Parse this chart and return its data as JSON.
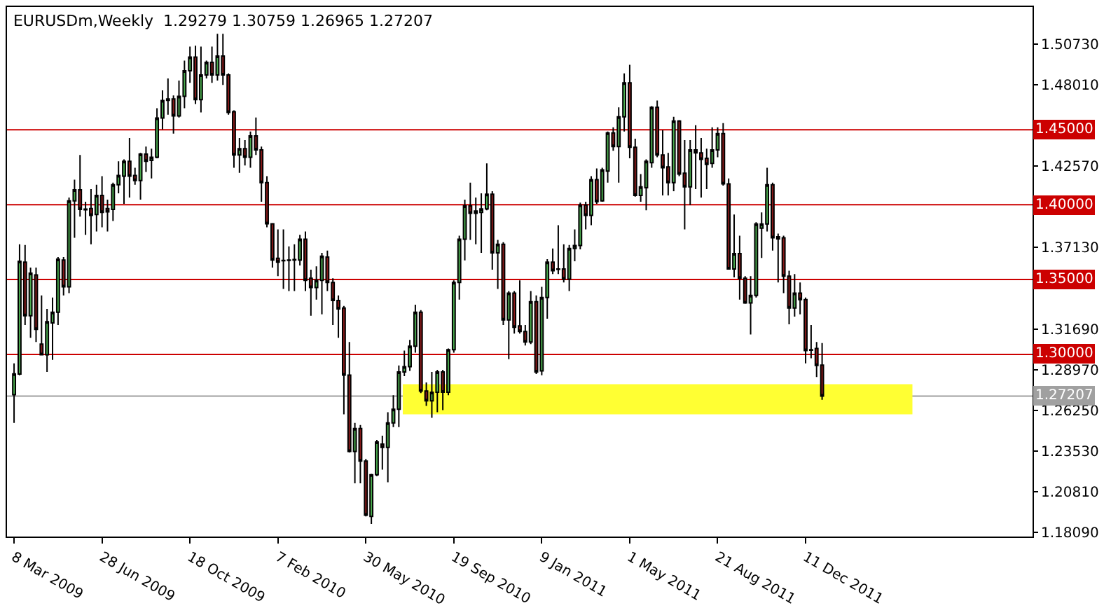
{
  "chart_data": {
    "type": "candlestick",
    "title": "EURUSDm,Weekly  1.29279 1.30759 1.26965 1.27207",
    "x": [
      "2009-03-08",
      "2009-03-15",
      "2009-03-22",
      "2009-03-29",
      "2009-04-05",
      "2009-04-12",
      "2009-04-19",
      "2009-04-26",
      "2009-05-03",
      "2009-05-10",
      "2009-05-17",
      "2009-05-24",
      "2009-05-31",
      "2009-06-07",
      "2009-06-14",
      "2009-06-21",
      "2009-06-28",
      "2009-07-05",
      "2009-07-12",
      "2009-07-19",
      "2009-07-26",
      "2009-08-02",
      "2009-08-09",
      "2009-08-16",
      "2009-08-23",
      "2009-08-30",
      "2009-09-06",
      "2009-09-13",
      "2009-09-20",
      "2009-09-27",
      "2009-10-04",
      "2009-10-11",
      "2009-10-18",
      "2009-10-25",
      "2009-11-01",
      "2009-11-08",
      "2009-11-15",
      "2009-11-22",
      "2009-11-29",
      "2009-12-06",
      "2009-12-13",
      "2009-12-20",
      "2009-12-27",
      "2010-01-03",
      "2010-01-10",
      "2010-01-17",
      "2010-01-24",
      "2010-01-31",
      "2010-02-07",
      "2010-02-14",
      "2010-02-21",
      "2010-02-28",
      "2010-03-07",
      "2010-03-14",
      "2010-03-21",
      "2010-03-28",
      "2010-04-04",
      "2010-04-11",
      "2010-04-18",
      "2010-04-25",
      "2010-05-02",
      "2010-05-09",
      "2010-05-16",
      "2010-05-23",
      "2010-05-30",
      "2010-06-06",
      "2010-06-13",
      "2010-06-20",
      "2010-06-27",
      "2010-07-04",
      "2010-07-11",
      "2010-07-18",
      "2010-07-25",
      "2010-08-01",
      "2010-08-08",
      "2010-08-15",
      "2010-08-22",
      "2010-08-29",
      "2010-09-05",
      "2010-09-12",
      "2010-09-19",
      "2010-09-26",
      "2010-10-03",
      "2010-10-10",
      "2010-10-17",
      "2010-10-24",
      "2010-10-31",
      "2010-11-07",
      "2010-11-14",
      "2010-11-21",
      "2010-11-28",
      "2010-12-05",
      "2010-12-12",
      "2010-12-19",
      "2010-12-26",
      "2011-01-02",
      "2011-01-09",
      "2011-01-16",
      "2011-01-23",
      "2011-01-30",
      "2011-02-06",
      "2011-02-13",
      "2011-02-20",
      "2011-02-27",
      "2011-03-06",
      "2011-03-13",
      "2011-03-20",
      "2011-03-27",
      "2011-04-03",
      "2011-04-10",
      "2011-04-17",
      "2011-04-24",
      "2011-05-01",
      "2011-05-08",
      "2011-05-15",
      "2011-05-22",
      "2011-05-29",
      "2011-06-05",
      "2011-06-12",
      "2011-06-19",
      "2011-06-26",
      "2011-07-03",
      "2011-07-10",
      "2011-07-17",
      "2011-07-24",
      "2011-07-31",
      "2011-08-07",
      "2011-08-14",
      "2011-08-21",
      "2011-08-28",
      "2011-09-04",
      "2011-09-11",
      "2011-09-18",
      "2011-09-25",
      "2011-10-02",
      "2011-10-09",
      "2011-10-16",
      "2011-10-23",
      "2011-10-30",
      "2011-11-06",
      "2011-11-13",
      "2011-11-20",
      "2011-11-27",
      "2011-12-04",
      "2011-12-11",
      "2011-12-18",
      "2011-12-25",
      "2012-01-01"
    ],
    "ohlc": [
      [
        1.273,
        1.294,
        1.2542,
        1.287
      ],
      [
        1.2869,
        1.3735,
        1.286,
        1.3622
      ],
      [
        1.3616,
        1.373,
        1.3196,
        1.3258
      ],
      [
        1.3258,
        1.3579,
        1.311,
        1.3542
      ],
      [
        1.3531,
        1.3579,
        1.3082,
        1.3167
      ],
      [
        1.3068,
        1.3394,
        1.2997,
        1.2997
      ],
      [
        1.2997,
        1.3304,
        1.2883,
        1.3218
      ],
      [
        1.321,
        1.338,
        1.2963,
        1.3281
      ],
      [
        1.3281,
        1.365,
        1.3196,
        1.3636
      ],
      [
        1.363,
        1.365,
        1.3394,
        1.3451
      ],
      [
        1.3451,
        1.4048,
        1.3409,
        1.4025
      ],
      [
        1.4025,
        1.4167,
        1.3778,
        1.4099
      ],
      [
        1.4099,
        1.4332,
        1.392,
        1.3968
      ],
      [
        1.397,
        1.4019,
        1.3798,
        1.3966
      ],
      [
        1.3974,
        1.4104,
        1.3735,
        1.3928
      ],
      [
        1.3934,
        1.4133,
        1.3821,
        1.4062
      ],
      [
        1.4062,
        1.419,
        1.3849,
        1.3948
      ],
      [
        1.3974,
        1.4033,
        1.3821,
        1.3951
      ],
      [
        1.3968,
        1.4147,
        1.3891,
        1.4133
      ],
      [
        1.4133,
        1.4289,
        1.4076,
        1.4195
      ],
      [
        1.419,
        1.4303,
        1.4005,
        1.4289
      ],
      [
        1.4289,
        1.4445,
        1.4048,
        1.419
      ],
      [
        1.4195,
        1.4246,
        1.4133,
        1.4161
      ],
      [
        1.4161,
        1.4346,
        1.4033,
        1.4337
      ],
      [
        1.4337,
        1.4388,
        1.4218,
        1.4289
      ],
      [
        1.4295,
        1.4374,
        1.4175,
        1.4317
      ],
      [
        1.4317,
        1.4644,
        1.4309,
        1.4579
      ],
      [
        1.4579,
        1.4763,
        1.4502,
        1.4695
      ],
      [
        1.4697,
        1.4843,
        1.4601,
        1.4706
      ],
      [
        1.4706,
        1.4729,
        1.4474,
        1.4593
      ],
      [
        1.4593,
        1.4829,
        1.4582,
        1.4723
      ],
      [
        1.4723,
        1.4962,
        1.4644,
        1.4894
      ],
      [
        1.4894,
        1.5056,
        1.4814,
        1.4985
      ],
      [
        1.4985,
        1.5062,
        1.4672,
        1.4701
      ],
      [
        1.4701,
        1.5056,
        1.4616,
        1.4866
      ],
      [
        1.4866,
        1.4962,
        1.4843,
        1.4951
      ],
      [
        1.4951,
        1.5056,
        1.4814,
        1.4866
      ],
      [
        1.4866,
        1.5141,
        1.4829,
        1.4993
      ],
      [
        1.4993,
        1.5141,
        1.48,
        1.4866
      ],
      [
        1.4866,
        1.4877,
        1.4601,
        1.4616
      ],
      [
        1.4621,
        1.463,
        1.4246,
        1.4332
      ],
      [
        1.4332,
        1.4445,
        1.4212,
        1.4374
      ],
      [
        1.4374,
        1.4431,
        1.4261,
        1.4317
      ],
      [
        1.4317,
        1.4488,
        1.4246,
        1.4459
      ],
      [
        1.4459,
        1.4582,
        1.4332,
        1.4366
      ],
      [
        1.4366,
        1.4388,
        1.4019,
        1.4147
      ],
      [
        1.4147,
        1.419,
        1.3849,
        1.3872
      ],
      [
        1.3872,
        1.3877,
        1.3579,
        1.363
      ],
      [
        1.3642,
        1.3835,
        1.3522,
        1.3616
      ],
      [
        1.3627,
        1.3835,
        1.3437,
        1.3625
      ],
      [
        1.363,
        1.3721,
        1.3423,
        1.3627
      ],
      [
        1.363,
        1.3735,
        1.3423,
        1.3633
      ],
      [
        1.363,
        1.3798,
        1.3593,
        1.3769
      ],
      [
        1.3769,
        1.3821,
        1.3423,
        1.3494
      ],
      [
        1.3508,
        1.3565,
        1.3258,
        1.3446
      ],
      [
        1.3446,
        1.3588,
        1.3366,
        1.3494
      ],
      [
        1.3494,
        1.3678,
        1.3267,
        1.3656
      ],
      [
        1.365,
        1.3693,
        1.3423,
        1.348
      ],
      [
        1.348,
        1.3508,
        1.3196,
        1.336
      ],
      [
        1.336,
        1.3394,
        1.311,
        1.3304
      ],
      [
        1.3309,
        1.3323,
        1.2599,
        1.2861
      ],
      [
        1.2861,
        1.3082,
        1.2344,
        1.2352
      ],
      [
        1.2352,
        1.2542,
        1.2139,
        1.2505
      ],
      [
        1.2505,
        1.2528,
        1.2139,
        1.2287
      ],
      [
        1.2287,
        1.2301,
        1.1918,
        1.1926
      ],
      [
        1.1918,
        1.2202,
        1.1867,
        1.2196
      ],
      [
        1.2196,
        1.2429,
        1.2187,
        1.2415
      ],
      [
        1.2401,
        1.2457,
        1.223,
        1.2378
      ],
      [
        1.2378,
        1.2613,
        1.2145,
        1.2542
      ],
      [
        1.2542,
        1.2727,
        1.2514,
        1.2633
      ],
      [
        1.2633,
        1.2926,
        1.2514,
        1.2883
      ],
      [
        1.2883,
        1.3025,
        1.2855,
        1.2917
      ],
      [
        1.2917,
        1.3096,
        1.2889,
        1.3054
      ],
      [
        1.3054,
        1.3332,
        1.3011,
        1.3281
      ],
      [
        1.3281,
        1.3295,
        1.2741,
        1.2755
      ],
      [
        1.2755,
        1.2812,
        1.2656,
        1.269
      ],
      [
        1.269,
        1.2883,
        1.2576,
        1.2747
      ],
      [
        1.2747,
        1.2897,
        1.2613,
        1.2883
      ],
      [
        1.2883,
        1.2897,
        1.2628,
        1.2747
      ],
      [
        1.2747,
        1.3039,
        1.2727,
        1.3031
      ],
      [
        1.3031,
        1.3494,
        1.3011,
        1.348
      ],
      [
        1.348,
        1.3792,
        1.3366,
        1.3769
      ],
      [
        1.3769,
        1.4033,
        1.3627,
        1.3991
      ],
      [
        1.3991,
        1.4147,
        1.3764,
        1.3942
      ],
      [
        1.3942,
        1.4048,
        1.3735,
        1.3957
      ],
      [
        1.3948,
        1.4076,
        1.3678,
        1.3971
      ],
      [
        1.3971,
        1.4275,
        1.3962,
        1.407
      ],
      [
        1.407,
        1.409,
        1.3565,
        1.3678
      ],
      [
        1.3678,
        1.3764,
        1.3437,
        1.3735
      ],
      [
        1.3735,
        1.3749,
        1.3196,
        1.323
      ],
      [
        1.323,
        1.3423,
        1.2968,
        1.3409
      ],
      [
        1.3409,
        1.3423,
        1.3139,
        1.3181
      ],
      [
        1.319,
        1.3494,
        1.3139,
        1.3153
      ],
      [
        1.3153,
        1.3196,
        1.3059,
        1.3082
      ],
      [
        1.3082,
        1.3423,
        1.3068,
        1.3352
      ],
      [
        1.3352,
        1.3394,
        1.2869,
        1.2883
      ],
      [
        1.2889,
        1.3451,
        1.286,
        1.338
      ],
      [
        1.338,
        1.3636,
        1.3238,
        1.3616
      ],
      [
        1.3616,
        1.3707,
        1.3536,
        1.3559
      ],
      [
        1.357,
        1.3863,
        1.3536,
        1.3568
      ],
      [
        1.357,
        1.3735,
        1.348,
        1.3502
      ],
      [
        1.3502,
        1.373,
        1.3423,
        1.3707
      ],
      [
        1.3707,
        1.3835,
        1.3622,
        1.3727
      ],
      [
        1.3727,
        1.4014,
        1.3701,
        1.3997
      ],
      [
        1.3997,
        1.4019,
        1.3835,
        1.3928
      ],
      [
        1.3928,
        1.419,
        1.3863,
        1.4167
      ],
      [
        1.4167,
        1.4241,
        1.4005,
        1.4019
      ],
      [
        1.4025,
        1.4246,
        1.4019,
        1.4232
      ],
      [
        1.4224,
        1.4488,
        1.4147,
        1.4479
      ],
      [
        1.4479,
        1.4516,
        1.436,
        1.4388
      ],
      [
        1.4388,
        1.465,
        1.4147,
        1.4587
      ],
      [
        1.4587,
        1.4877,
        1.4488,
        1.4814
      ],
      [
        1.4814,
        1.4934,
        1.4309,
        1.4383
      ],
      [
        1.4383,
        1.444,
        1.4053,
        1.4062
      ],
      [
        1.4062,
        1.4204,
        1.4019,
        1.4119
      ],
      [
        1.4113,
        1.4303,
        1.3962,
        1.4289
      ],
      [
        1.428,
        1.4658,
        1.4246,
        1.465
      ],
      [
        1.465,
        1.4695,
        1.4317,
        1.4332
      ],
      [
        1.4332,
        1.4496,
        1.4062,
        1.4246
      ],
      [
        1.4252,
        1.4346,
        1.4062,
        1.4147
      ],
      [
        1.4147,
        1.4587,
        1.409,
        1.4559
      ],
      [
        1.4559,
        1.4564,
        1.419,
        1.4204
      ],
      [
        1.421,
        1.4431,
        1.3835,
        1.4119
      ],
      [
        1.4119,
        1.4431,
        1.3997,
        1.4366
      ],
      [
        1.4366,
        1.453,
        1.4104,
        1.4346
      ],
      [
        1.4346,
        1.4445,
        1.4048,
        1.4303
      ],
      [
        1.4309,
        1.4374,
        1.4104,
        1.4269
      ],
      [
        1.4275,
        1.4516,
        1.4246,
        1.4366
      ],
      [
        1.4366,
        1.4516,
        1.4317,
        1.4474
      ],
      [
        1.4474,
        1.4545,
        1.4127,
        1.4139
      ],
      [
        1.4139,
        1.4175,
        1.3565,
        1.357
      ],
      [
        1.357,
        1.3934,
        1.3514,
        1.3673
      ],
      [
        1.3673,
        1.3792,
        1.3366,
        1.3508
      ],
      [
        1.3508,
        1.3522,
        1.3338,
        1.3343
      ],
      [
        1.3343,
        1.3522,
        1.3133,
        1.3394
      ],
      [
        1.3394,
        1.3883,
        1.338,
        1.3871
      ],
      [
        1.3843,
        1.3948,
        1.3644,
        1.3871
      ],
      [
        1.3871,
        1.4246,
        1.3821,
        1.4133
      ],
      [
        1.4133,
        1.4147,
        1.3693,
        1.3778
      ],
      [
        1.3786,
        1.3806,
        1.348,
        1.3772
      ],
      [
        1.3778,
        1.3792,
        1.3409,
        1.3522
      ],
      [
        1.3522,
        1.3559,
        1.3201,
        1.3309
      ],
      [
        1.3309,
        1.3536,
        1.3252,
        1.3409
      ],
      [
        1.3409,
        1.348,
        1.3267,
        1.3366
      ],
      [
        1.3366,
        1.338,
        1.294,
        1.3025
      ],
      [
        1.3031,
        1.3196,
        1.2974,
        1.3028
      ],
      [
        1.3039,
        1.3082,
        1.2849,
        1.2926
      ],
      [
        1.29279,
        1.30759,
        1.26965,
        1.27207
      ]
    ],
    "xlim": [
      "2009-02-27",
      "2012-09-25"
    ],
    "xticks": [
      {
        "value": "2009-03-08",
        "label": "8 Mar 2009"
      },
      {
        "value": "2009-06-28",
        "label": "28 Jun 2009"
      },
      {
        "value": "2009-10-18",
        "label": "18 Oct 2009"
      },
      {
        "value": "2010-02-07",
        "label": "7 Feb 2010"
      },
      {
        "value": "2010-05-30",
        "label": "30 May 2010"
      },
      {
        "value": "2010-09-19",
        "label": "19 Sep 2010"
      },
      {
        "value": "2011-01-09",
        "label": "9 Jan 2011"
      },
      {
        "value": "2011-05-01",
        "label": "1 May 2011"
      },
      {
        "value": "2011-08-21",
        "label": "21 Aug 2011"
      },
      {
        "value": "2011-12-11",
        "label": "11 Dec 2011"
      }
    ],
    "ylim": [
      1.1783,
      1.532
    ],
    "yticks": [
      {
        "value": 1.5073,
        "label": "1.50730"
      },
      {
        "value": 1.4801,
        "label": "1.48010"
      },
      {
        "value": 1.4257,
        "label": "1.42570"
      },
      {
        "value": 1.3713,
        "label": "1.37130"
      },
      {
        "value": 1.3169,
        "label": "1.31690"
      },
      {
        "value": 1.2897,
        "label": "1.28970"
      },
      {
        "value": 1.2625,
        "label": "1.26250"
      },
      {
        "value": 1.2353,
        "label": "1.23530"
      },
      {
        "value": 1.2081,
        "label": "1.20810"
      },
      {
        "value": 1.1809,
        "label": "1.18090"
      }
    ],
    "ref_lines": [
      {
        "axis": "y",
        "value": 1.45,
        "label": "1.45000",
        "color": "#cc0000"
      },
      {
        "axis": "y",
        "value": 1.4,
        "label": "1.40000",
        "color": "#cc0000"
      },
      {
        "axis": "y",
        "value": 1.35,
        "label": "1.35000",
        "color": "#cc0000"
      },
      {
        "axis": "y",
        "value": 1.3,
        "label": "1.30000",
        "color": "#cc0000"
      },
      {
        "axis": "y",
        "value": 1.27207,
        "label": "1.27207",
        "color": "#a0a0a0"
      }
    ],
    "bands": [
      {
        "axis": "y",
        "from": 1.26,
        "to": 1.28,
        "color": "#ffff33"
      }
    ],
    "grid": false
  }
}
